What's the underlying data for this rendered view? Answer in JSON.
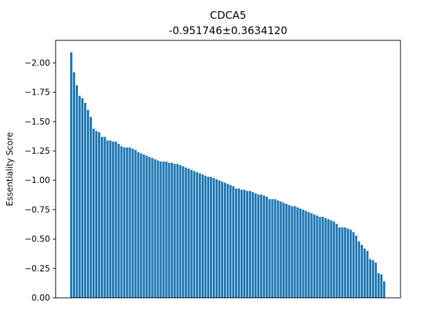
{
  "chart_data": {
    "type": "bar",
    "title": "CDCA5",
    "subtitle": "-0.951746±0.3634120",
    "xlabel": "",
    "ylabel": "Essentiality Score",
    "ylim": [
      0,
      -2.2
    ],
    "y_axis_inverted": true,
    "y_ticks": [
      "0.00",
      "−0.25",
      "−0.50",
      "−0.75",
      "−1.00",
      "−1.25",
      "−1.50",
      "−1.75",
      "−2.00"
    ],
    "y_tick_values": [
      0,
      -0.25,
      -0.5,
      -0.75,
      -1.0,
      -1.25,
      -1.5,
      -1.75,
      -2.0
    ],
    "x_ticks_visible": false,
    "grid": false,
    "bar_color": "#1f77b4",
    "values": [
      -2.09,
      -1.92,
      -1.81,
      -1.72,
      -1.7,
      -1.66,
      -1.6,
      -1.54,
      -1.44,
      -1.42,
      -1.41,
      -1.37,
      -1.37,
      -1.34,
      -1.34,
      -1.33,
      -1.33,
      -1.31,
      -1.29,
      -1.28,
      -1.28,
      -1.28,
      -1.27,
      -1.26,
      -1.24,
      -1.23,
      -1.22,
      -1.21,
      -1.2,
      -1.19,
      -1.18,
      -1.17,
      -1.16,
      -1.16,
      -1.16,
      -1.15,
      -1.15,
      -1.14,
      -1.14,
      -1.13,
      -1.12,
      -1.11,
      -1.1,
      -1.09,
      -1.08,
      -1.07,
      -1.06,
      -1.05,
      -1.04,
      -1.03,
      -1.03,
      -1.02,
      -1.01,
      -1.0,
      -0.99,
      -0.98,
      -0.97,
      -0.96,
      -0.95,
      -0.93,
      -0.93,
      -0.92,
      -0.92,
      -0.91,
      -0.91,
      -0.9,
      -0.89,
      -0.88,
      -0.88,
      -0.87,
      -0.86,
      -0.84,
      -0.84,
      -0.84,
      -0.83,
      -0.82,
      -0.81,
      -0.8,
      -0.79,
      -0.78,
      -0.78,
      -0.77,
      -0.76,
      -0.75,
      -0.74,
      -0.73,
      -0.72,
      -0.71,
      -0.7,
      -0.69,
      -0.69,
      -0.68,
      -0.67,
      -0.66,
      -0.65,
      -0.63,
      -0.6,
      -0.6,
      -0.6,
      -0.59,
      -0.58,
      -0.56,
      -0.53,
      -0.48,
      -0.45,
      -0.42,
      -0.4,
      -0.33,
      -0.32,
      -0.3,
      -0.21,
      -0.2,
      -0.14
    ]
  }
}
